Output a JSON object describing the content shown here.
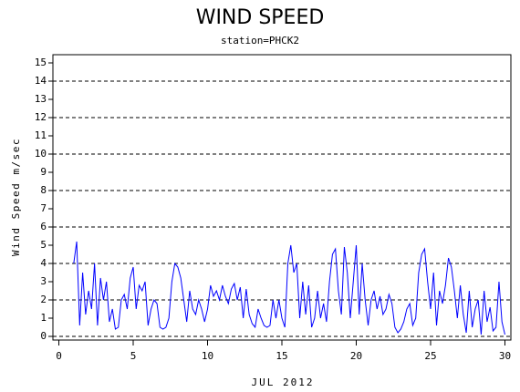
{
  "chart_data": {
    "type": "line",
    "title": "WIND SPEED",
    "subtitle": "station=PHCK2",
    "xlabel": "JUL 2012",
    "ylabel": "Wind Speed m/sec",
    "xlim": [
      -0.4,
      30.4
    ],
    "xticks": [
      0,
      5,
      10,
      15,
      20,
      25,
      30
    ],
    "ylim": [
      -0.2,
      15.45
    ],
    "yticks": [
      0,
      1,
      2,
      3,
      4,
      5,
      6,
      7,
      8,
      9,
      10,
      11,
      12,
      13,
      14,
      15
    ],
    "grid": true,
    "x": [
      1,
      1.2,
      1.4,
      1.6,
      1.8,
      2,
      2.2,
      2.4,
      2.6,
      2.8,
      3,
      3.2,
      3.4,
      3.6,
      3.8,
      4,
      4.2,
      4.4,
      4.6,
      4.8,
      5,
      5.2,
      5.4,
      5.6,
      5.8,
      6,
      6.2,
      6.4,
      6.6,
      6.8,
      7,
      7.2,
      7.4,
      7.6,
      7.8,
      8,
      8.2,
      8.4,
      8.6,
      8.8,
      9,
      9.2,
      9.4,
      9.6,
      9.8,
      10,
      10.2,
      10.4,
      10.6,
      10.8,
      11,
      11.2,
      11.4,
      11.6,
      11.8,
      12,
      12.2,
      12.4,
      12.6,
      12.8,
      13,
      13.2,
      13.4,
      13.6,
      13.8,
      14,
      14.2,
      14.4,
      14.6,
      14.8,
      15,
      15.2,
      15.4,
      15.6,
      15.8,
      16,
      16.2,
      16.4,
      16.6,
      16.8,
      17,
      17.2,
      17.4,
      17.6,
      17.8,
      18,
      18.2,
      18.4,
      18.6,
      18.8,
      19,
      19.2,
      19.4,
      19.6,
      19.8,
      20,
      20.2,
      20.4,
      20.6,
      20.8,
      21,
      21.2,
      21.4,
      21.6,
      21.8,
      22,
      22.2,
      22.4,
      22.6,
      22.8,
      23,
      23.2,
      23.4,
      23.6,
      23.8,
      24,
      24.2,
      24.4,
      24.6,
      24.8,
      25,
      25.2,
      25.4,
      25.6,
      25.8,
      26,
      26.2,
      26.4,
      26.6,
      26.8,
      27,
      27.2,
      27.4,
      27.6,
      27.8,
      28,
      28.2,
      28.4,
      28.6,
      28.8,
      29,
      29.2,
      29.4,
      29.6,
      29.8,
      30
    ],
    "series": [
      {
        "name": "Wind Speed",
        "color": "#0000ff",
        "values": [
          4.0,
          5.2,
          0.6,
          3.5,
          1.2,
          2.5,
          1.5,
          4.0,
          0.6,
          3.2,
          2.0,
          3.0,
          0.8,
          1.5,
          0.4,
          0.5,
          2.0,
          2.3,
          1.5,
          3.2,
          3.8,
          1.5,
          2.8,
          2.5,
          3.0,
          0.6,
          1.5,
          2.0,
          1.8,
          0.5,
          0.4,
          0.5,
          1.0,
          3.0,
          4.0,
          3.8,
          3.2,
          2.0,
          0.8,
          2.5,
          1.5,
          1.2,
          2.0,
          1.5,
          0.8,
          1.5,
          2.8,
          2.2,
          2.5,
          2.0,
          2.8,
          2.2,
          1.8,
          2.6,
          2.9,
          2.0,
          2.7,
          1.0,
          2.6,
          1.2,
          0.7,
          0.5,
          1.5,
          1.0,
          0.6,
          0.5,
          0.6,
          2.0,
          1.0,
          2.0,
          1.0,
          0.5,
          4.0,
          5.0,
          3.5,
          4.0,
          1.0,
          3.0,
          1.2,
          2.8,
          0.5,
          1.0,
          2.5,
          1.0,
          1.8,
          0.8,
          3.0,
          4.5,
          4.8,
          2.5,
          1.2,
          4.9,
          3.5,
          1.0,
          3.0,
          5.0,
          1.2,
          4.0,
          2.0,
          0.6,
          2.0,
          2.5,
          1.5,
          2.2,
          1.2,
          1.5,
          2.3,
          1.8,
          0.5,
          0.2,
          0.4,
          0.8,
          1.5,
          1.8,
          0.6,
          1.0,
          3.5,
          4.5,
          4.8,
          3.0,
          1.5,
          3.5,
          0.6,
          2.5,
          1.8,
          2.8,
          4.3,
          3.8,
          2.5,
          1.0,
          2.8,
          1.2,
          0.2,
          2.5,
          0.5,
          1.5,
          2.0,
          0.1,
          2.5,
          0.8,
          1.6,
          0.3,
          0.5,
          3.0,
          0.8,
          0.1
        ]
      }
    ]
  }
}
